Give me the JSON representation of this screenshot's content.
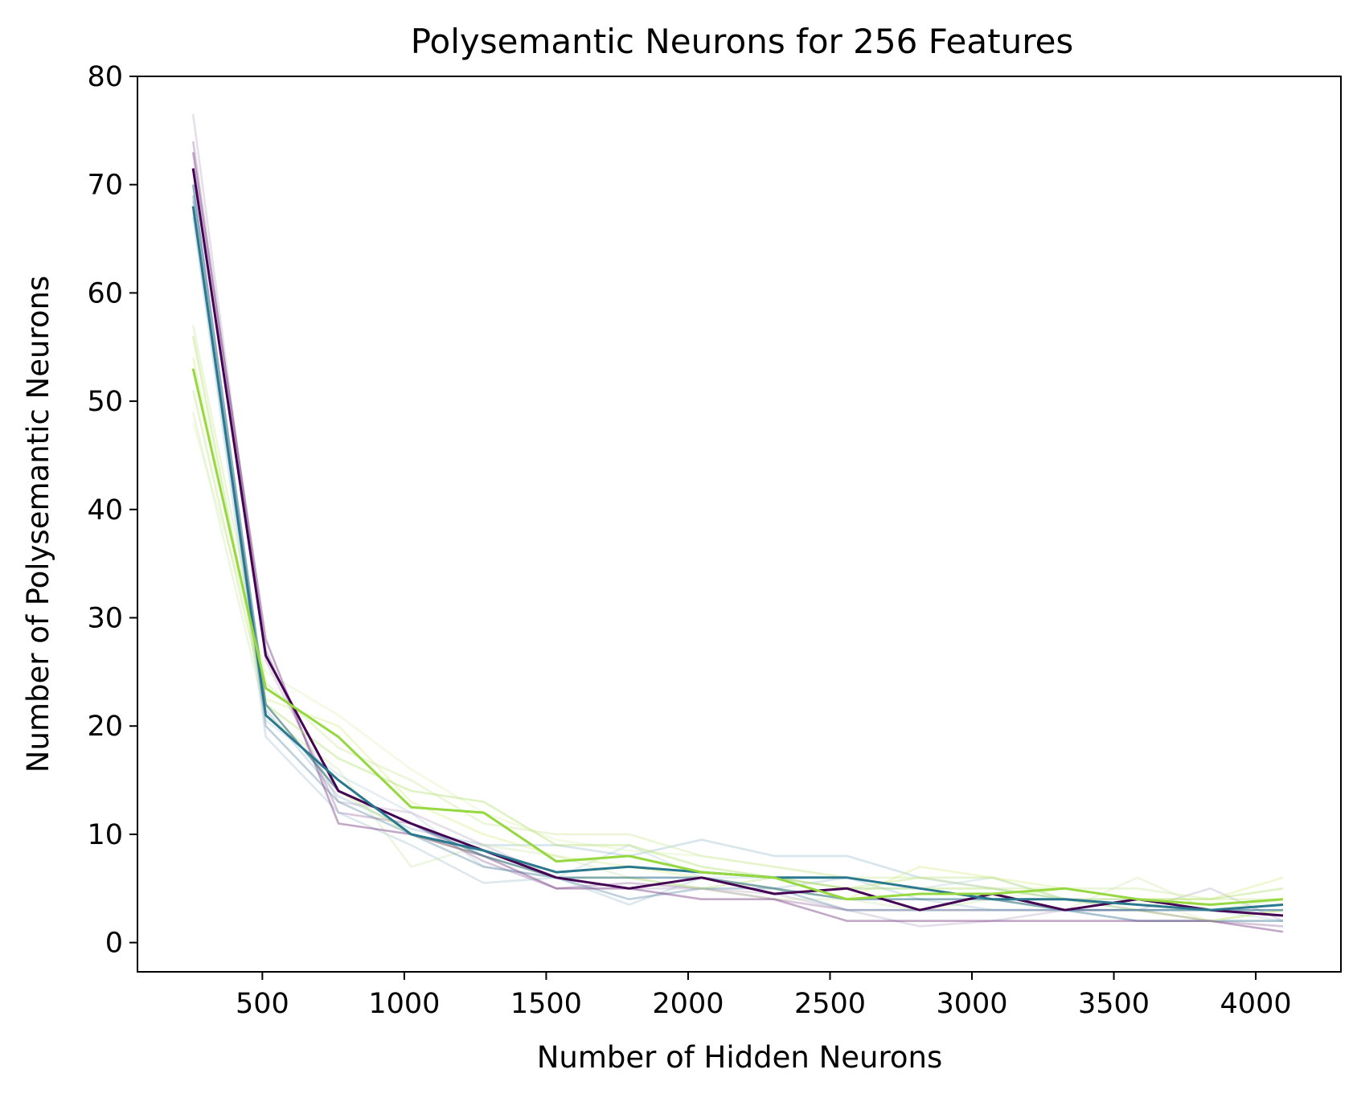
{
  "chart_data": {
    "type": "line",
    "title": "Polysemantic Neurons for 256 Features",
    "xlabel": "Number of Hidden Neurons",
    "ylabel": "Number of Polysemantic Neurons",
    "xlim": [
      60,
      4300
    ],
    "ylim": [
      -2.7,
      80
    ],
    "xticks": [
      500,
      1000,
      1500,
      2000,
      2500,
      3000,
      3500,
      4000
    ],
    "yticks": [
      0,
      10,
      20,
      30,
      40,
      50,
      60,
      70,
      80
    ],
    "grid": false,
    "legend": "none",
    "x": [
      256,
      512,
      768,
      1024,
      1280,
      1536,
      1792,
      2048,
      2304,
      2560,
      2816,
      3072,
      3328,
      3584,
      3840,
      4096
    ],
    "series": [
      {
        "color": "#440154",
        "opacity": 1.0,
        "values": [
          71.5,
          26.5,
          14.0,
          11.0,
          8.5,
          6.0,
          5.0,
          6.0,
          4.5,
          5.0,
          3.0,
          4.5,
          3.0,
          4.0,
          3.0,
          2.5
        ]
      },
      {
        "color": "#7a3f86",
        "opacity": 0.45,
        "values": [
          73,
          28,
          11,
          10,
          8,
          5,
          5,
          4,
          4,
          2,
          2,
          2,
          2,
          2,
          2,
          1
        ]
      },
      {
        "color": "#8d5e99",
        "opacity": 0.35,
        "values": [
          74,
          27,
          12,
          11,
          7.5,
          5,
          5.5,
          5,
          4,
          3,
          3,
          3,
          3,
          3,
          2,
          1.5
        ]
      },
      {
        "color": "#b5a2c4",
        "opacity": 0.35,
        "values": [
          76.5,
          26,
          13,
          12,
          9,
          6,
          5,
          5,
          4.5,
          3,
          1.5,
          2,
          3,
          3,
          5,
          2
        ]
      },
      {
        "color": "#2a788e",
        "opacity": 1.0,
        "values": [
          68,
          21,
          15,
          10,
          8.5,
          6.5,
          7,
          6.5,
          6,
          6,
          5,
          4,
          4,
          3.5,
          3,
          3.5
        ]
      },
      {
        "color": "#2f6d8e",
        "opacity": 0.55,
        "values": [
          70,
          22,
          14,
          11,
          8,
          6,
          6,
          6,
          5,
          4,
          4,
          4,
          3,
          3,
          3,
          3
        ]
      },
      {
        "color": "#5f8ca8",
        "opacity": 0.4,
        "values": [
          69,
          20,
          13,
          10,
          7,
          6,
          4,
          5,
          5,
          3,
          3,
          3,
          3,
          2,
          2,
          2
        ]
      },
      {
        "color": "#9bbccf",
        "opacity": 0.35,
        "values": [
          67,
          19,
          12,
          9,
          5.5,
          6,
          3.5,
          6,
          5,
          6,
          4,
          3,
          3,
          2,
          2,
          2
        ]
      },
      {
        "color": "#7aa8c2",
        "opacity": 0.3,
        "values": [
          68.5,
          21.5,
          13.5,
          10.5,
          9,
          9,
          8,
          9.5,
          8,
          8,
          6,
          5,
          4,
          3,
          3,
          3
        ]
      },
      {
        "color": "#a9c7d8",
        "opacity": 0.3,
        "values": [
          67.5,
          20.5,
          15.5,
          12,
          7,
          6,
          9,
          6,
          6,
          5,
          5,
          6,
          4,
          4,
          3,
          2
        ]
      },
      {
        "color": "#95d840",
        "opacity": 1.0,
        "values": [
          53,
          23.5,
          19,
          12.5,
          12,
          7.5,
          8,
          6.5,
          6,
          4,
          4.5,
          4.5,
          5,
          4,
          3.5,
          4
        ]
      },
      {
        "color": "#b8e27a",
        "opacity": 0.45,
        "values": [
          56,
          22,
          17,
          14,
          13,
          9,
          9,
          7,
          6,
          5,
          5,
          5,
          4,
          4,
          4,
          5
        ]
      },
      {
        "color": "#cce99d",
        "opacity": 0.4,
        "values": [
          57,
          24,
          18,
          15,
          11,
          10,
          10,
          8,
          7,
          6,
          6,
          5,
          5,
          5,
          4,
          4
        ]
      },
      {
        "color": "#d6ee8a",
        "opacity": 0.4,
        "values": [
          54,
          22.5,
          20,
          13,
          10,
          8,
          7,
          6,
          5,
          4,
          7,
          6,
          5,
          4,
          4,
          6
        ]
      },
      {
        "color": "#c8e6a8",
        "opacity": 0.35,
        "values": [
          49,
          21,
          16,
          7,
          9,
          8,
          6,
          5,
          4,
          4,
          3,
          4,
          3,
          6,
          3,
          4
        ]
      },
      {
        "color": "#dff2b8",
        "opacity": 0.4,
        "values": [
          48,
          25,
          21,
          16,
          12,
          9.5,
          8.5,
          8,
          7,
          6,
          5,
          4,
          5,
          4,
          2,
          3
        ]
      },
      {
        "color": "#bfe47f",
        "opacity": 0.4,
        "values": [
          51,
          22,
          14,
          10,
          8,
          6,
          6,
          5,
          6,
          5,
          6,
          6,
          4,
          3,
          2,
          3
        ]
      }
    ]
  }
}
